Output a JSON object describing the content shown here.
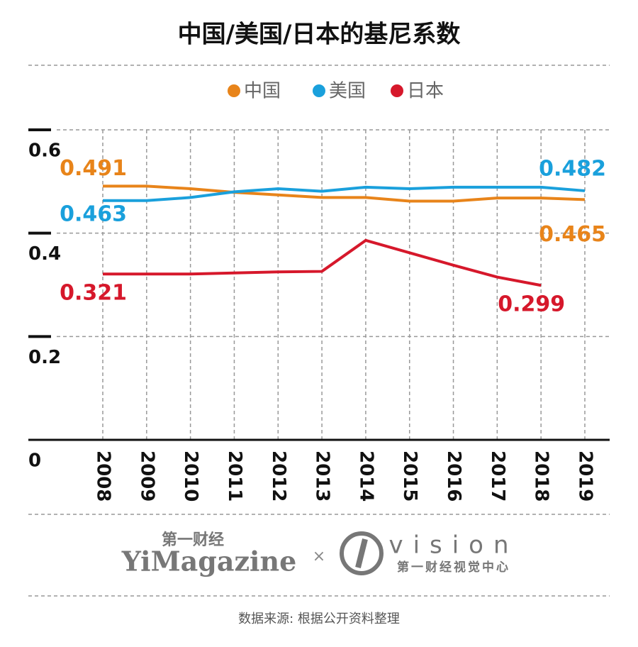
{
  "chart_data": {
    "type": "line",
    "title": "中国/美国/日本的基尼系数",
    "categories": [
      "2008",
      "2009",
      "2010",
      "2011",
      "2012",
      "2013",
      "2014",
      "2015",
      "2016",
      "2017",
      "2018",
      "2019"
    ],
    "series": [
      {
        "name": "中国",
        "color": "#e8841a",
        "values": [
          0.491,
          0.491,
          0.486,
          0.479,
          0.474,
          0.469,
          0.469,
          0.462,
          0.462,
          0.468,
          0.468,
          0.465
        ]
      },
      {
        "name": "美国",
        "color": "#1aa0dc",
        "values": [
          0.463,
          0.463,
          0.469,
          0.48,
          0.486,
          0.481,
          0.489,
          0.486,
          0.489,
          0.489,
          0.489,
          0.482
        ]
      },
      {
        "name": "日本",
        "color": "#d6182b",
        "values": [
          0.321,
          0.321,
          0.321,
          0.323,
          0.325,
          0.326,
          0.386,
          0.362,
          0.338,
          0.315,
          0.299,
          null
        ]
      }
    ],
    "ylim": [
      0,
      0.6
    ],
    "yticks": [
      0,
      0.2,
      0.4,
      0.6
    ],
    "grid": true
  },
  "footer": {
    "brand_cn": "第一财经",
    "brand_en": "YiMagazine",
    "times": "×",
    "vision": "vision",
    "vision_cn": "第一财经视觉中心",
    "source": "数据来源: 根据公开资料整理"
  }
}
